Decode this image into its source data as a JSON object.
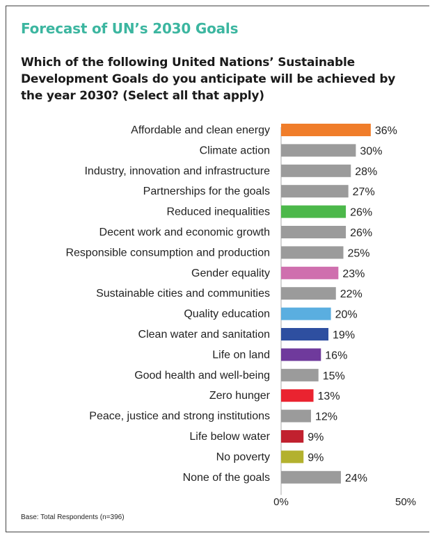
{
  "title": "Forecast of UN’s 2030 Goals",
  "question": "Which of the following United Nations’ Sustainable Development Goals do you anticipate will be achieved by the year 2030? (Select all that apply)",
  "footnote": "Base: Total Respondents (n=396)",
  "colors": {
    "title": "#3cb6a0",
    "default_bar": "#9b9b9b",
    "axis": "#aaaaaa"
  },
  "chart_data": {
    "type": "bar",
    "orientation": "horizontal",
    "title": "",
    "xlabel": "",
    "ylabel": "",
    "xlim": [
      0,
      50
    ],
    "ticks": [
      0,
      50
    ],
    "tick_labels": [
      "0%",
      "50%"
    ],
    "grid": false,
    "categories": [
      "Affordable and clean energy",
      "Climate action",
      "Industry, innovation and infrastructure",
      "Partnerships for the goals",
      "Reduced inequalities",
      "Decent work and economic growth",
      "Responsible consumption and production",
      "Gender equality",
      "Sustainable cities and communities",
      "Quality education",
      "Clean water and sanitation",
      "Life on land",
      "Good health and well-being",
      "Zero hunger",
      "Peace, justice and strong institutions",
      "Life below water",
      "No poverty",
      "None of the goals"
    ],
    "values": [
      36,
      30,
      28,
      27,
      26,
      26,
      25,
      23,
      22,
      20,
      19,
      16,
      15,
      13,
      12,
      9,
      9,
      24
    ],
    "value_labels": [
      "36%",
      "30%",
      "28%",
      "27%",
      "26%",
      "26%",
      "25%",
      "23%",
      "22%",
      "20%",
      "19%",
      "16%",
      "15%",
      "13%",
      "12%",
      "9%",
      "9%",
      "24%"
    ],
    "bar_colors": [
      "#f07d2a",
      "#9b9b9b",
      "#9b9b9b",
      "#9b9b9b",
      "#4cb84a",
      "#9b9b9b",
      "#9b9b9b",
      "#cf6fae",
      "#9b9b9b",
      "#5aaee0",
      "#2e4fa0",
      "#6f3a9c",
      "#9b9b9b",
      "#ea2330",
      "#9b9b9b",
      "#c1212f",
      "#b3b12e",
      "#9b9b9b"
    ]
  }
}
